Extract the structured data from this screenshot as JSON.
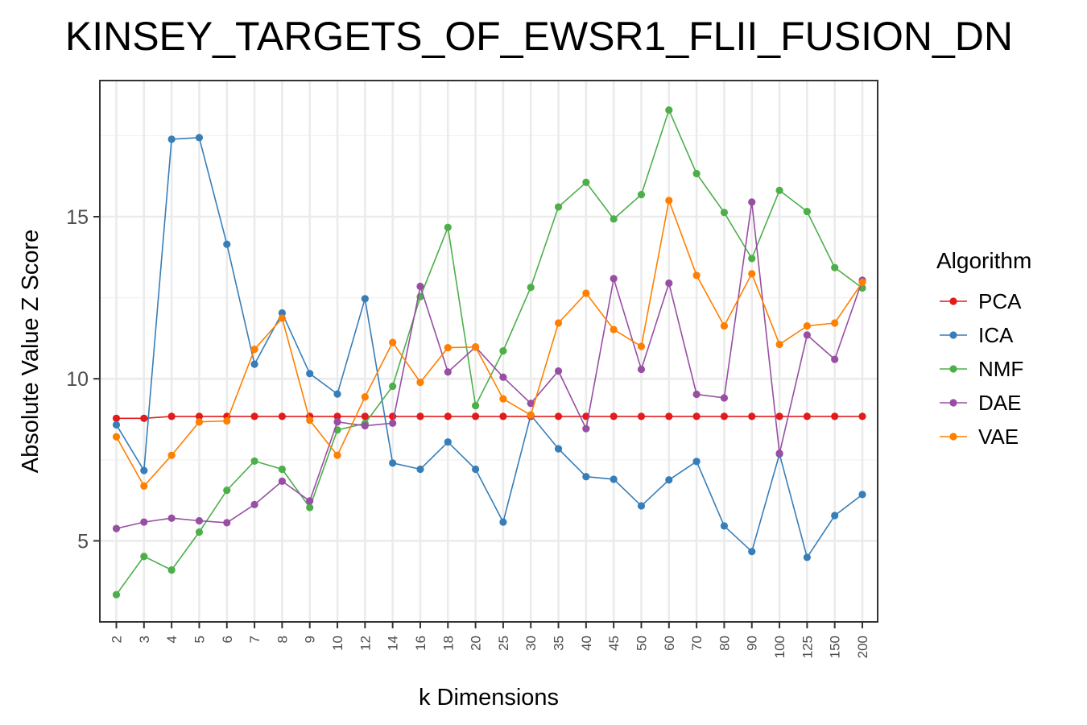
{
  "chart_data": {
    "type": "line",
    "title": "KINSEY_TARGETS_OF_EWSR1_FLII_FUSION_DN",
    "xlabel": "k Dimensions",
    "ylabel": "Absolute Value Z Score",
    "categories": [
      "2",
      "3",
      "4",
      "5",
      "6",
      "7",
      "8",
      "9",
      "10",
      "12",
      "14",
      "16",
      "18",
      "20",
      "25",
      "30",
      "35",
      "40",
      "45",
      "50",
      "60",
      "70",
      "80",
      "90",
      "100",
      "125",
      "150",
      "200"
    ],
    "y_ticks": [
      5,
      10,
      15
    ],
    "ylim": [
      2.5,
      19.2
    ],
    "legend_title": "Algorithm",
    "legend_position": "right",
    "grid": true,
    "series": [
      {
        "name": "PCA",
        "color": "#e41a1c",
        "values": [
          8.78,
          8.78,
          8.84,
          8.84,
          8.84,
          8.84,
          8.84,
          8.84,
          8.84,
          8.84,
          8.84,
          8.84,
          8.84,
          8.84,
          8.84,
          8.84,
          8.84,
          8.84,
          8.84,
          8.84,
          8.84,
          8.84,
          8.84,
          8.84,
          8.84,
          8.84,
          8.84,
          8.84
        ]
      },
      {
        "name": "ICA",
        "color": "#377eb8",
        "values": [
          8.58,
          7.17,
          17.39,
          17.44,
          14.15,
          10.45,
          12.03,
          10.16,
          9.53,
          12.47,
          7.4,
          7.21,
          8.05,
          7.21,
          5.58,
          8.88,
          7.84,
          6.98,
          6.9,
          6.08,
          6.88,
          7.45,
          5.46,
          4.67,
          7.68,
          4.49,
          5.78,
          6.43
        ]
      },
      {
        "name": "NMF",
        "color": "#4daf4a",
        "values": [
          3.34,
          4.52,
          4.1,
          5.27,
          6.56,
          7.46,
          7.21,
          6.03,
          8.42,
          8.62,
          9.77,
          12.53,
          14.67,
          9.17,
          10.86,
          12.82,
          15.3,
          16.06,
          14.93,
          15.68,
          18.29,
          16.33,
          15.13,
          13.71,
          15.81,
          15.16,
          13.43,
          12.8
        ]
      },
      {
        "name": "DAE",
        "color": "#984ea3",
        "values": [
          5.38,
          5.58,
          5.7,
          5.62,
          5.56,
          6.12,
          6.84,
          6.23,
          8.67,
          8.55,
          8.63,
          12.85,
          10.21,
          10.98,
          10.05,
          9.24,
          10.24,
          8.46,
          13.09,
          10.29,
          12.95,
          9.52,
          9.41,
          15.45,
          7.7,
          11.35,
          10.6,
          13.04
        ]
      },
      {
        "name": "VAE",
        "color": "#ff7f00",
        "values": [
          8.21,
          6.69,
          7.64,
          8.67,
          8.7,
          10.91,
          11.87,
          8.72,
          7.64,
          9.44,
          11.12,
          9.89,
          10.96,
          10.98,
          9.38,
          8.88,
          11.72,
          12.64,
          11.52,
          11.0,
          15.5,
          13.19,
          11.63,
          13.24,
          11.06,
          11.63,
          11.72,
          12.98
        ]
      }
    ]
  }
}
